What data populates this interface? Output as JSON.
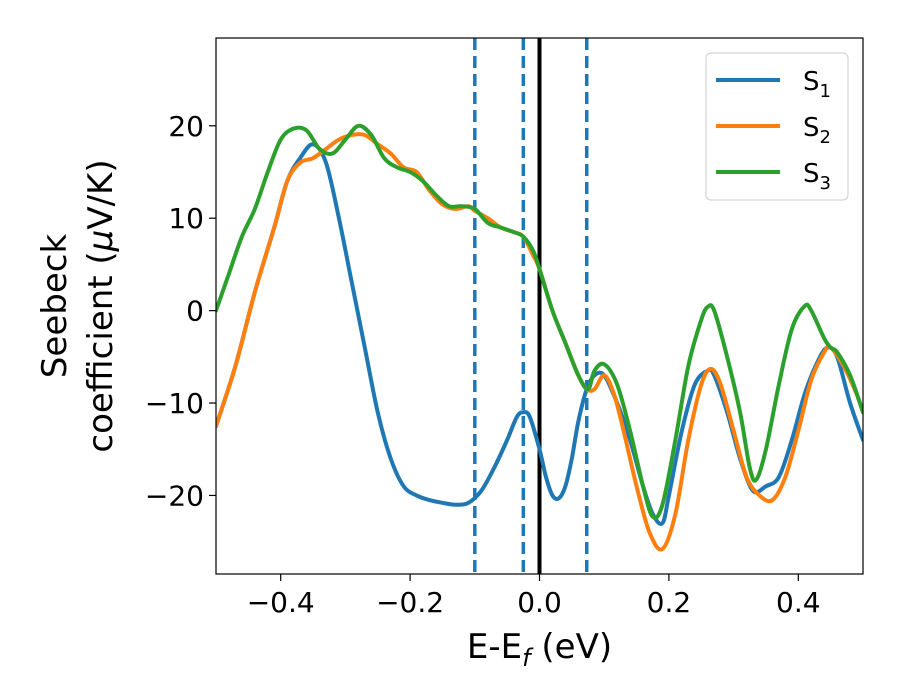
{
  "chart_data": {
    "type": "line",
    "xlabel": {
      "main": "E-E",
      "sub": "f",
      "rest": " (eV)"
    },
    "ylabel": {
      "line1": "Seebeck",
      "line2_pre": "coefficient  (",
      "line2_mu": "μ",
      "line2_post": "V/K)"
    },
    "xlim": [
      -0.5,
      0.5
    ],
    "ylim": [
      -28.5,
      29.5
    ],
    "xticks": [
      -0.4,
      -0.2,
      0.0,
      0.2,
      0.4
    ],
    "xtick_labels": [
      "−0.4",
      "−0.2",
      "0.0",
      "0.2",
      "0.4"
    ],
    "yticks": [
      -20,
      -10,
      0,
      10,
      20
    ],
    "ytick_labels": [
      "−20",
      "−10",
      "0",
      "10",
      "20"
    ],
    "vlines": [
      {
        "x": -0.1,
        "style": "dashed",
        "color": "#1f77b4"
      },
      {
        "x": -0.025,
        "style": "dashed",
        "color": "#1f77b4"
      },
      {
        "x": 0.0,
        "style": "solid",
        "color": "#000000"
      },
      {
        "x": 0.073,
        "style": "dashed",
        "color": "#1f77b4"
      }
    ],
    "legend_position": "top-right",
    "series": [
      {
        "name": "S",
        "sub": "1",
        "color": "#1f77b4",
        "points": [
          [
            -0.5,
            -12.5
          ],
          [
            -0.47,
            -6
          ],
          [
            -0.44,
            2
          ],
          [
            -0.41,
            9
          ],
          [
            -0.39,
            14
          ],
          [
            -0.37,
            16.5
          ],
          [
            -0.35,
            18
          ],
          [
            -0.33,
            16
          ],
          [
            -0.31,
            10
          ],
          [
            -0.29,
            3
          ],
          [
            -0.27,
            -4
          ],
          [
            -0.25,
            -11
          ],
          [
            -0.23,
            -16
          ],
          [
            -0.21,
            -19
          ],
          [
            -0.19,
            -20
          ],
          [
            -0.17,
            -20.5
          ],
          [
            -0.15,
            -20.8
          ],
          [
            -0.13,
            -21
          ],
          [
            -0.11,
            -20.8
          ],
          [
            -0.09,
            -19.5
          ],
          [
            -0.07,
            -17
          ],
          [
            -0.05,
            -14
          ],
          [
            -0.035,
            -11.5
          ],
          [
            -0.025,
            -11
          ],
          [
            -0.015,
            -11.5
          ],
          [
            0.0,
            -15
          ],
          [
            0.01,
            -18
          ],
          [
            0.02,
            -20
          ],
          [
            0.03,
            -20.3
          ],
          [
            0.04,
            -19
          ],
          [
            0.05,
            -16
          ],
          [
            0.06,
            -12
          ],
          [
            0.073,
            -8.5
          ],
          [
            0.085,
            -7
          ],
          [
            0.1,
            -7
          ],
          [
            0.12,
            -10
          ],
          [
            0.14,
            -14
          ],
          [
            0.16,
            -19
          ],
          [
            0.175,
            -22
          ],
          [
            0.19,
            -23
          ],
          [
            0.2,
            -20
          ],
          [
            0.22,
            -13
          ],
          [
            0.24,
            -8
          ],
          [
            0.26,
            -6.5
          ],
          [
            0.27,
            -7
          ],
          [
            0.29,
            -11
          ],
          [
            0.31,
            -16
          ],
          [
            0.33,
            -19.5
          ],
          [
            0.35,
            -19
          ],
          [
            0.37,
            -18
          ],
          [
            0.39,
            -14
          ],
          [
            0.41,
            -9
          ],
          [
            0.43,
            -5.5
          ],
          [
            0.445,
            -4
          ],
          [
            0.46,
            -5
          ],
          [
            0.48,
            -10
          ],
          [
            0.5,
            -14
          ]
        ]
      },
      {
        "name": "S",
        "sub": "2",
        "color": "#ff7f0e",
        "points": [
          [
            -0.5,
            -12.5
          ],
          [
            -0.47,
            -6
          ],
          [
            -0.44,
            2
          ],
          [
            -0.41,
            9
          ],
          [
            -0.39,
            14
          ],
          [
            -0.37,
            16
          ],
          [
            -0.35,
            16.5
          ],
          [
            -0.33,
            17.5
          ],
          [
            -0.31,
            18.5
          ],
          [
            -0.29,
            19
          ],
          [
            -0.27,
            19
          ],
          [
            -0.25,
            18
          ],
          [
            -0.23,
            17
          ],
          [
            -0.21,
            15.5
          ],
          [
            -0.19,
            15
          ],
          [
            -0.17,
            13
          ],
          [
            -0.15,
            11.5
          ],
          [
            -0.13,
            11
          ],
          [
            -0.11,
            11.3
          ],
          [
            -0.1,
            10.8
          ],
          [
            -0.08,
            10
          ],
          [
            -0.06,
            9
          ],
          [
            -0.04,
            8.5
          ],
          [
            -0.025,
            8
          ],
          [
            -0.01,
            6
          ],
          [
            0.0,
            4.5
          ],
          [
            0.02,
            0
          ],
          [
            0.04,
            -3.5
          ],
          [
            0.06,
            -7
          ],
          [
            0.073,
            -8.5
          ],
          [
            0.085,
            -8.5
          ],
          [
            0.1,
            -7
          ],
          [
            0.115,
            -9
          ],
          [
            0.13,
            -13
          ],
          [
            0.15,
            -19
          ],
          [
            0.17,
            -24
          ],
          [
            0.19,
            -25.8
          ],
          [
            0.21,
            -22
          ],
          [
            0.23,
            -14
          ],
          [
            0.25,
            -8
          ],
          [
            0.265,
            -6.3
          ],
          [
            0.28,
            -8
          ],
          [
            0.3,
            -13
          ],
          [
            0.32,
            -18
          ],
          [
            0.34,
            -20
          ],
          [
            0.36,
            -20.5
          ],
          [
            0.38,
            -18
          ],
          [
            0.4,
            -13
          ],
          [
            0.42,
            -7.5
          ],
          [
            0.44,
            -4.5
          ],
          [
            0.45,
            -4
          ],
          [
            0.47,
            -6
          ],
          [
            0.49,
            -9
          ],
          [
            0.5,
            -11
          ]
        ]
      },
      {
        "name": "S",
        "sub": "3",
        "color": "#2ca02c",
        "points": [
          [
            -0.5,
            0
          ],
          [
            -0.48,
            4
          ],
          [
            -0.46,
            8
          ],
          [
            -0.44,
            11
          ],
          [
            -0.42,
            15
          ],
          [
            -0.4,
            18.5
          ],
          [
            -0.38,
            19.7
          ],
          [
            -0.36,
            19.5
          ],
          [
            -0.34,
            17.5
          ],
          [
            -0.32,
            17
          ],
          [
            -0.3,
            18.5
          ],
          [
            -0.28,
            20
          ],
          [
            -0.26,
            19
          ],
          [
            -0.24,
            16.5
          ],
          [
            -0.22,
            15.5
          ],
          [
            -0.2,
            15
          ],
          [
            -0.18,
            14
          ],
          [
            -0.16,
            12.5
          ],
          [
            -0.14,
            11.3
          ],
          [
            -0.12,
            11.3
          ],
          [
            -0.1,
            11
          ],
          [
            -0.08,
            9.5
          ],
          [
            -0.06,
            9
          ],
          [
            -0.04,
            8.5
          ],
          [
            -0.025,
            8
          ],
          [
            -0.01,
            6.5
          ],
          [
            0.0,
            4.5
          ],
          [
            0.02,
            0
          ],
          [
            0.04,
            -3.5
          ],
          [
            0.06,
            -7
          ],
          [
            0.075,
            -8.5
          ],
          [
            0.085,
            -6.5
          ],
          [
            0.1,
            -5.8
          ],
          [
            0.12,
            -8
          ],
          [
            0.14,
            -13
          ],
          [
            0.16,
            -19
          ],
          [
            0.175,
            -22.3
          ],
          [
            0.19,
            -21
          ],
          [
            0.21,
            -14
          ],
          [
            0.23,
            -6
          ],
          [
            0.25,
            -1
          ],
          [
            0.26,
            0.4
          ],
          [
            0.27,
            0
          ],
          [
            0.29,
            -5
          ],
          [
            0.31,
            -11
          ],
          [
            0.325,
            -17
          ],
          [
            0.335,
            -18.3
          ],
          [
            0.35,
            -15
          ],
          [
            0.37,
            -8
          ],
          [
            0.39,
            -2
          ],
          [
            0.41,
            0.5
          ],
          [
            0.42,
            0
          ],
          [
            0.44,
            -3
          ],
          [
            0.45,
            -4
          ],
          [
            0.46,
            -4.5
          ],
          [
            0.48,
            -7
          ],
          [
            0.5,
            -11
          ]
        ]
      }
    ]
  }
}
